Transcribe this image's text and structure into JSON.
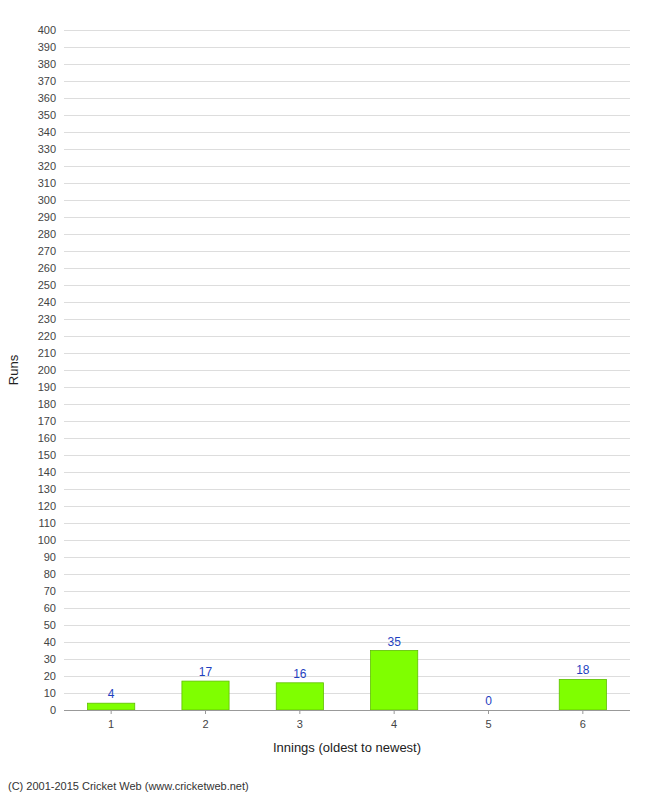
{
  "chart_data": {
    "type": "bar",
    "xlabel": "Innings (oldest to newest)",
    "ylabel": "Runs",
    "categories": [
      "1",
      "2",
      "3",
      "4",
      "5",
      "6"
    ],
    "values": [
      4,
      17,
      16,
      35,
      0,
      18
    ],
    "color": "#7FFF00",
    "ylim": [
      0,
      400
    ],
    "yticks": [
      0,
      10,
      20,
      30,
      40,
      50,
      60,
      70,
      80,
      90,
      100,
      110,
      120,
      130,
      140,
      150,
      160,
      170,
      180,
      190,
      200,
      210,
      220,
      230,
      240,
      250,
      260,
      270,
      280,
      290,
      300,
      310,
      320,
      330,
      340,
      350,
      360,
      370,
      380,
      390,
      400
    ],
    "grid": true,
    "data_labels": true,
    "annotations": [
      "(C) 2001-2015 Cricket Web (www.cricketweb.net)"
    ]
  }
}
